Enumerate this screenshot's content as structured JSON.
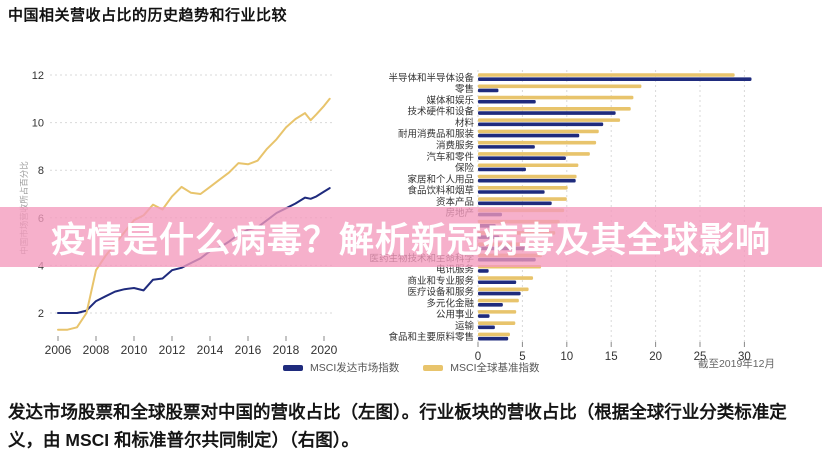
{
  "page": {
    "title": "中国相关营收占比的历史趋势和行业比较",
    "caption": "发达市场股票和全球股票对中国的营收占比（左图）。行业板块的营收占比（根据全球行业分类标准定义，由 MSCI 和标准普尔共同制定）（右图）。"
  },
  "banner": {
    "text": "疫情是什么病毒？解析新冠病毒及其全球影响",
    "background": "#f49abc",
    "opacity": 0.78,
    "text_color": "#ffffff"
  },
  "colors": {
    "developed": "#1f2b7d",
    "global": "#e8c46c",
    "grid": "#d9d9d9",
    "axis_text": "#333333",
    "note_text": "#666666"
  },
  "legend": {
    "items": [
      {
        "label": "MSCI发达市场指数",
        "color": "#1f2b7d"
      },
      {
        "label": "MSCI全球基准指数",
        "color": "#e8c46c"
      }
    ]
  },
  "chart_data": [
    {
      "type": "line",
      "title": "",
      "ylabel": "中国市场营收所占百分比",
      "xticks": [
        2006,
        2008,
        2010,
        2012,
        2014,
        2016,
        2018,
        2020
      ],
      "yticks": [
        2,
        4,
        6,
        8,
        10,
        12
      ],
      "xlim": [
        2005.5,
        2020.8
      ],
      "ylim": [
        0,
        12.5
      ],
      "grid": "horizontal-dotted",
      "x": [
        2006,
        2006.5,
        2007,
        2007.5,
        2008,
        2008.5,
        2009,
        2009.5,
        2010,
        2010.5,
        2011,
        2011.5,
        2012,
        2012.5,
        2013,
        2013.5,
        2014,
        2014.5,
        2015,
        2015.5,
        2016,
        2016.5,
        2017,
        2017.5,
        2018,
        2018.5,
        2019,
        2019.3,
        2019.6,
        2020,
        2020.3
      ],
      "series": [
        {
          "name": "MSCI发达市场指数",
          "color": "#1f2b7d",
          "values": [
            2.0,
            2.0,
            2.0,
            2.1,
            2.5,
            2.7,
            2.9,
            3.0,
            3.05,
            2.95,
            3.4,
            3.45,
            3.8,
            3.9,
            4.1,
            4.3,
            4.6,
            4.75,
            5.0,
            5.3,
            5.5,
            5.6,
            5.9,
            6.2,
            6.4,
            6.6,
            6.85,
            6.8,
            6.9,
            7.1,
            7.25
          ]
        },
        {
          "name": "MSCI全球基准指数",
          "color": "#e8c46c",
          "values": [
            1.3,
            1.3,
            1.4,
            2.0,
            3.8,
            4.4,
            4.9,
            5.4,
            5.9,
            6.1,
            6.55,
            6.35,
            6.9,
            7.3,
            7.05,
            7.0,
            7.3,
            7.6,
            7.9,
            8.3,
            8.25,
            8.4,
            8.9,
            9.3,
            9.8,
            10.15,
            10.4,
            10.1,
            10.35,
            10.7,
            11.0
          ]
        }
      ]
    },
    {
      "type": "bar",
      "orientation": "horizontal",
      "note": "截至2019年12月",
      "xticks": [
        0,
        5,
        10,
        15,
        20,
        25,
        30
      ],
      "xlim": [
        0,
        33
      ],
      "grid": "vertical-dotted",
      "series_names": [
        "MSCI全球基准指数",
        "MSCI发达市场指数"
      ],
      "rows": [
        {
          "label": "半导体和半导体设备",
          "global": 28.9,
          "developed": 30.8
        },
        {
          "label": "零售",
          "global": 18.4,
          "developed": 2.3
        },
        {
          "label": "媒体和娱乐",
          "global": 17.5,
          "developed": 6.5
        },
        {
          "label": "技术硬件和设备",
          "global": 17.2,
          "developed": 15.5
        },
        {
          "label": "材料",
          "global": 16.0,
          "developed": 14.1
        },
        {
          "label": "耐用消费品和服装",
          "global": 13.6,
          "developed": 11.4
        },
        {
          "label": "消费服务",
          "global": 13.3,
          "developed": 6.4
        },
        {
          "label": "汽车和零件",
          "global": 12.6,
          "developed": 9.9
        },
        {
          "label": "保险",
          "global": 11.3,
          "developed": 5.4
        },
        {
          "label": "家居和个人用品",
          "global": 11.1,
          "developed": 11.0
        },
        {
          "label": "食品饮料和烟草",
          "global": 10.1,
          "developed": 7.5
        },
        {
          "label": "资本产品",
          "global": 10.0,
          "developed": 8.3
        },
        {
          "label": "房地产",
          "global": 9.7,
          "developed": 2.7
        },
        {
          "label": "",
          "global": 9.2,
          "developed": 2.0
        },
        {
          "label": "",
          "global": 8.7,
          "developed": 2.4
        },
        {
          "label": "",
          "global": 8.1,
          "developed": 5.5
        },
        {
          "label": "医药生物技术和生命科学",
          "global": 7.2,
          "developed": 6.5
        },
        {
          "label": "电讯服务",
          "global": 7.1,
          "developed": 1.2
        },
        {
          "label": "商业和专业服务",
          "global": 6.2,
          "developed": 4.3
        },
        {
          "label": "医疗设备和服务",
          "global": 5.7,
          "developed": 4.8
        },
        {
          "label": "多元化金融",
          "global": 4.6,
          "developed": 2.8
        },
        {
          "label": "公用事业",
          "global": 4.3,
          "developed": 1.3
        },
        {
          "label": "运输",
          "global": 4.2,
          "developed": 1.9
        },
        {
          "label": "食品和主要原料零售",
          "global": 3.6,
          "developed": 3.4
        }
      ]
    }
  ]
}
